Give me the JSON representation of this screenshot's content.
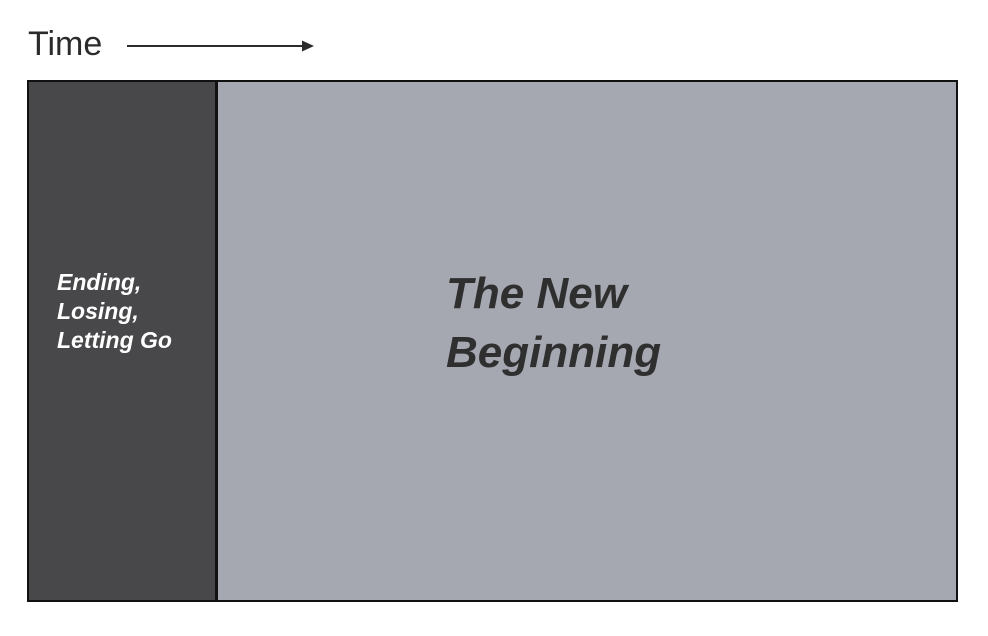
{
  "header": {
    "label": "Time",
    "arrow_icon": "right-arrow-icon"
  },
  "phases": [
    {
      "label": "Ending,\nLosing,\nLetting Go",
      "background": "#48484a",
      "text_color": "#ffffff"
    },
    {
      "label": "The New\nBeginning",
      "background": "#a5a8b0",
      "text_color": "#2f2f30"
    }
  ],
  "colors": {
    "border": "#111111",
    "time_text": "#2b2b2b"
  }
}
